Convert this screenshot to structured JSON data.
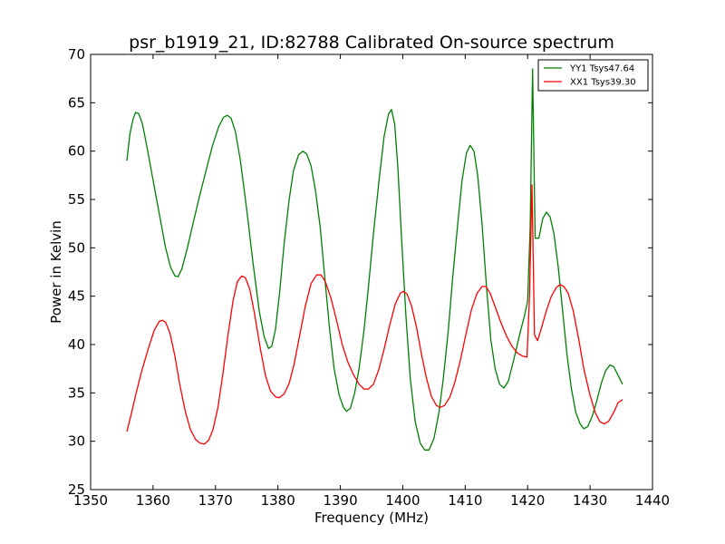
{
  "chart_data": {
    "type": "line",
    "title": "psr_b1919_21, ID:82788 Calibrated On-source spectrum",
    "xlabel": "Frequency (MHz)",
    "ylabel": "Power in Kelvin",
    "xlim": [
      1350,
      1440
    ],
    "ylim": [
      25,
      70
    ],
    "xticks": [
      1350,
      1360,
      1370,
      1380,
      1390,
      1400,
      1410,
      1420,
      1430,
      1440
    ],
    "yticks": [
      25,
      30,
      35,
      40,
      45,
      50,
      55,
      60,
      65,
      70
    ],
    "grid": false,
    "legend_position": "top-right",
    "series": [
      {
        "name": "YY1 Tsys47.64",
        "color": "#008000",
        "points": [
          [
            1355.8,
            59.0
          ],
          [
            1356.3,
            61.8
          ],
          [
            1356.8,
            63.3
          ],
          [
            1357.2,
            64.0
          ],
          [
            1357.7,
            63.9
          ],
          [
            1358.3,
            62.8
          ],
          [
            1359.0,
            60.5
          ],
          [
            1360.0,
            57.0
          ],
          [
            1361.0,
            53.5
          ],
          [
            1362.0,
            50.0
          ],
          [
            1362.8,
            48.0
          ],
          [
            1363.5,
            47.1
          ],
          [
            1364.0,
            47.0
          ],
          [
            1364.6,
            47.8
          ],
          [
            1365.5,
            50.0
          ],
          [
            1366.5,
            52.8
          ],
          [
            1367.5,
            55.5
          ],
          [
            1368.5,
            58.0
          ],
          [
            1369.5,
            60.5
          ],
          [
            1370.5,
            62.5
          ],
          [
            1371.3,
            63.5
          ],
          [
            1371.9,
            63.7
          ],
          [
            1372.5,
            63.4
          ],
          [
            1373.2,
            62.0
          ],
          [
            1374.0,
            59.0
          ],
          [
            1375.0,
            54.0
          ],
          [
            1376.0,
            48.5
          ],
          [
            1377.0,
            43.5
          ],
          [
            1377.8,
            40.8
          ],
          [
            1378.5,
            39.6
          ],
          [
            1379.0,
            39.8
          ],
          [
            1379.6,
            41.5
          ],
          [
            1380.3,
            45.5
          ],
          [
            1381.0,
            50.5
          ],
          [
            1381.8,
            55.0
          ],
          [
            1382.5,
            58.0
          ],
          [
            1383.3,
            59.6
          ],
          [
            1384.0,
            60.0
          ],
          [
            1384.6,
            59.7
          ],
          [
            1385.3,
            58.5
          ],
          [
            1386.0,
            56.0
          ],
          [
            1386.8,
            52.0
          ],
          [
            1387.5,
            47.0
          ],
          [
            1388.3,
            41.5
          ],
          [
            1389.0,
            37.5
          ],
          [
            1389.8,
            34.8
          ],
          [
            1390.5,
            33.5
          ],
          [
            1391.0,
            33.1
          ],
          [
            1391.6,
            33.4
          ],
          [
            1392.3,
            35.0
          ],
          [
            1393.0,
            37.5
          ],
          [
            1393.8,
            41.5
          ],
          [
            1394.5,
            46.0
          ],
          [
            1395.3,
            51.5
          ],
          [
            1396.2,
            57.0
          ],
          [
            1397.0,
            61.5
          ],
          [
            1397.7,
            63.8
          ],
          [
            1398.2,
            64.3
          ],
          [
            1398.7,
            62.8
          ],
          [
            1399.2,
            58.5
          ],
          [
            1399.8,
            51.0
          ],
          [
            1400.5,
            43.0
          ],
          [
            1401.2,
            36.5
          ],
          [
            1402.0,
            32.0
          ],
          [
            1402.8,
            29.8
          ],
          [
            1403.5,
            29.1
          ],
          [
            1404.2,
            29.1
          ],
          [
            1405.0,
            30.3
          ],
          [
            1405.8,
            33.0
          ],
          [
            1406.5,
            36.5
          ],
          [
            1407.3,
            41.5
          ],
          [
            1408.0,
            47.0
          ],
          [
            1408.8,
            52.5
          ],
          [
            1409.5,
            57.0
          ],
          [
            1410.2,
            59.8
          ],
          [
            1410.8,
            60.6
          ],
          [
            1411.4,
            60.0
          ],
          [
            1412.0,
            57.5
          ],
          [
            1412.7,
            52.5
          ],
          [
            1413.4,
            46.0
          ],
          [
            1414.1,
            40.5
          ],
          [
            1414.8,
            37.5
          ],
          [
            1415.5,
            35.9
          ],
          [
            1416.2,
            35.5
          ],
          [
            1416.9,
            36.2
          ],
          [
            1417.8,
            38.5
          ],
          [
            1418.7,
            41.0
          ],
          [
            1419.5,
            43.0
          ],
          [
            1420.0,
            44.5
          ],
          [
            1420.4,
            52.0
          ],
          [
            1420.8,
            68.5
          ],
          [
            1421.2,
            51.0
          ],
          [
            1421.8,
            51.0
          ],
          [
            1422.4,
            53.0
          ],
          [
            1423.0,
            53.7
          ],
          [
            1423.6,
            53.2
          ],
          [
            1424.2,
            51.5
          ],
          [
            1424.9,
            48.0
          ],
          [
            1425.6,
            43.5
          ],
          [
            1426.3,
            39.0
          ],
          [
            1427.0,
            35.5
          ],
          [
            1427.7,
            33.0
          ],
          [
            1428.4,
            31.8
          ],
          [
            1429.0,
            31.3
          ],
          [
            1429.6,
            31.5
          ],
          [
            1430.3,
            32.5
          ],
          [
            1431.0,
            34.0
          ],
          [
            1431.8,
            36.0
          ],
          [
            1432.5,
            37.3
          ],
          [
            1433.2,
            37.9
          ],
          [
            1433.8,
            37.7
          ],
          [
            1434.5,
            36.8
          ],
          [
            1435.2,
            35.9
          ]
        ]
      },
      {
        "name": "XX1 Tsys39.30",
        "color": "#ff0000",
        "points": [
          [
            1355.8,
            31.0
          ],
          [
            1356.5,
            32.8
          ],
          [
            1357.3,
            35.0
          ],
          [
            1358.2,
            37.3
          ],
          [
            1359.2,
            39.5
          ],
          [
            1360.2,
            41.5
          ],
          [
            1361.0,
            42.4
          ],
          [
            1361.5,
            42.5
          ],
          [
            1362.0,
            42.3
          ],
          [
            1362.7,
            41.2
          ],
          [
            1363.5,
            38.8
          ],
          [
            1364.3,
            35.8
          ],
          [
            1365.2,
            33.0
          ],
          [
            1366.0,
            31.2
          ],
          [
            1366.8,
            30.2
          ],
          [
            1367.5,
            29.8
          ],
          [
            1368.2,
            29.7
          ],
          [
            1368.9,
            30.1
          ],
          [
            1369.6,
            31.2
          ],
          [
            1370.4,
            33.5
          ],
          [
            1371.2,
            37.0
          ],
          [
            1372.0,
            41.0
          ],
          [
            1372.8,
            44.5
          ],
          [
            1373.5,
            46.5
          ],
          [
            1374.2,
            47.1
          ],
          [
            1374.8,
            46.9
          ],
          [
            1375.5,
            45.7
          ],
          [
            1376.3,
            43.0
          ],
          [
            1377.2,
            39.5
          ],
          [
            1378.0,
            36.8
          ],
          [
            1378.8,
            35.2
          ],
          [
            1379.6,
            34.6
          ],
          [
            1380.2,
            34.5
          ],
          [
            1381.0,
            34.9
          ],
          [
            1381.8,
            36.0
          ],
          [
            1382.6,
            38.0
          ],
          [
            1383.5,
            41.0
          ],
          [
            1384.4,
            44.0
          ],
          [
            1385.3,
            46.3
          ],
          [
            1386.2,
            47.2
          ],
          [
            1386.9,
            47.2
          ],
          [
            1387.6,
            46.5
          ],
          [
            1388.5,
            44.8
          ],
          [
            1389.4,
            42.5
          ],
          [
            1390.3,
            40.0
          ],
          [
            1391.2,
            38.2
          ],
          [
            1392.1,
            36.9
          ],
          [
            1393.0,
            35.9
          ],
          [
            1393.8,
            35.4
          ],
          [
            1394.5,
            35.4
          ],
          [
            1395.3,
            35.9
          ],
          [
            1396.1,
            37.3
          ],
          [
            1397.0,
            39.5
          ],
          [
            1397.9,
            42.0
          ],
          [
            1398.8,
            44.2
          ],
          [
            1399.6,
            45.3
          ],
          [
            1400.1,
            45.5
          ],
          [
            1400.7,
            45.2
          ],
          [
            1401.4,
            44.0
          ],
          [
            1402.2,
            41.8
          ],
          [
            1403.0,
            39.0
          ],
          [
            1403.8,
            36.5
          ],
          [
            1404.6,
            34.6
          ],
          [
            1405.4,
            33.7
          ],
          [
            1406.0,
            33.5
          ],
          [
            1406.7,
            33.7
          ],
          [
            1407.5,
            34.5
          ],
          [
            1408.3,
            36.0
          ],
          [
            1409.2,
            38.3
          ],
          [
            1410.1,
            41.0
          ],
          [
            1411.0,
            43.6
          ],
          [
            1411.9,
            45.3
          ],
          [
            1412.7,
            46.0
          ],
          [
            1413.3,
            46.0
          ],
          [
            1414.0,
            45.3
          ],
          [
            1414.8,
            43.9
          ],
          [
            1415.7,
            42.3
          ],
          [
            1416.6,
            40.9
          ],
          [
            1417.5,
            39.8
          ],
          [
            1418.4,
            39.1
          ],
          [
            1419.2,
            38.8
          ],
          [
            1419.9,
            38.7
          ],
          [
            1420.3,
            45.0
          ],
          [
            1420.7,
            56.5
          ],
          [
            1421.1,
            41.0
          ],
          [
            1421.6,
            40.4
          ],
          [
            1422.2,
            41.7
          ],
          [
            1423.0,
            43.5
          ],
          [
            1423.8,
            45.0
          ],
          [
            1424.6,
            45.9
          ],
          [
            1425.2,
            46.2
          ],
          [
            1425.8,
            46.0
          ],
          [
            1426.5,
            45.3
          ],
          [
            1427.3,
            43.5
          ],
          [
            1428.2,
            40.5
          ],
          [
            1429.0,
            37.5
          ],
          [
            1429.9,
            35.0
          ],
          [
            1430.8,
            33.0
          ],
          [
            1431.6,
            32.0
          ],
          [
            1432.3,
            31.8
          ],
          [
            1433.0,
            32.1
          ],
          [
            1433.8,
            33.0
          ],
          [
            1434.5,
            34.0
          ],
          [
            1435.2,
            34.3
          ]
        ]
      }
    ]
  }
}
